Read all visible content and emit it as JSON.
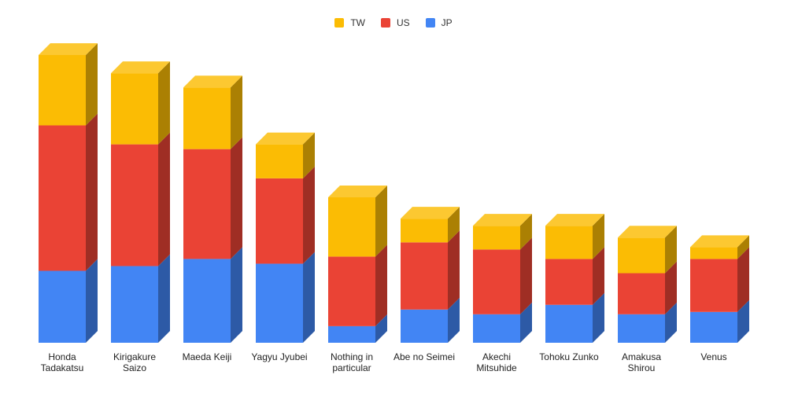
{
  "chart_data": {
    "type": "bar",
    "stacked": true,
    "three_d": true,
    "legend_position": "top",
    "grid": false,
    "categories": [
      "Honda Tadakatsu",
      "Kirigakure Saizo",
      "Maeda Keiji",
      "Yagyu Jyubei",
      "Nothing in particular",
      "Abe no Seimei",
      "Akechi Mitsuhide",
      "Tohoku Zunko",
      "Amakusa Shirou",
      "Venus"
    ],
    "series": [
      {
        "name": "JP",
        "color": "#4285f4",
        "values": [
          91,
          97,
          106,
          100,
          21,
          42,
          36,
          48,
          36,
          39
        ]
      },
      {
        "name": "US",
        "color": "#ea4335",
        "values": [
          184,
          154,
          139,
          108,
          88,
          85,
          82,
          58,
          52,
          67
        ]
      },
      {
        "name": "TW",
        "color": "#fbbc04",
        "values": [
          89,
          90,
          78,
          43,
          75,
          30,
          30,
          42,
          45,
          15
        ]
      }
    ],
    "legend_order": [
      "TW",
      "US",
      "JP"
    ],
    "ylim": [
      0,
      364
    ]
  }
}
